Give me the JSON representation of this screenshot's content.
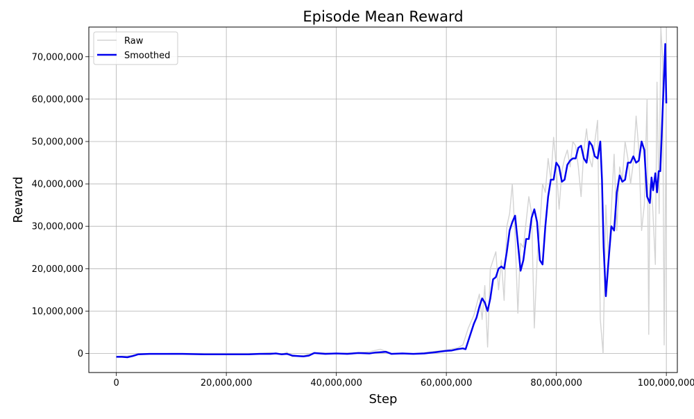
{
  "chart_data": {
    "type": "line",
    "title": "Episode Mean Reward",
    "xlabel": "Step",
    "ylabel": "Reward",
    "xlim": [
      -5000000,
      102000000
    ],
    "ylim": [
      -4500000,
      77000000
    ],
    "grid": true,
    "legend_position": "top-left",
    "x_ticks": [
      0,
      20000000,
      40000000,
      60000000,
      80000000,
      100000000
    ],
    "x_tick_labels": [
      "0",
      "20,000,000",
      "40,000,000",
      "60,000,000",
      "80,000,000",
      "100,000,000"
    ],
    "y_ticks": [
      0,
      10000000,
      20000000,
      30000000,
      40000000,
      50000000,
      60000000,
      70000000
    ],
    "y_tick_labels": [
      "0",
      "10,000,000",
      "20,000,000",
      "30,000,000",
      "40,000,000",
      "50,000,000",
      "60,000,000",
      "70,000,000"
    ],
    "series": [
      {
        "name": "Raw",
        "color": "#d3d3d3",
        "x": [
          0,
          2000000,
          4000000,
          6000000,
          8000000,
          10000000,
          14000000,
          18000000,
          22000000,
          26000000,
          28000000,
          30000000,
          31000000,
          32000000,
          34000000,
          36000000,
          40000000,
          44000000,
          46000000,
          48000000,
          50000000,
          54000000,
          58000000,
          60000000,
          62000000,
          63000000,
          64000000,
          65000000,
          66000000,
          66500000,
          67000000,
          67500000,
          68000000,
          69000000,
          69500000,
          70000000,
          70500000,
          71000000,
          71500000,
          72000000,
          72500000,
          73000000,
          73500000,
          74000000,
          75000000,
          75500000,
          76000000,
          76500000,
          77000000,
          77500000,
          78000000,
          78500000,
          79000000,
          79500000,
          80000000,
          80500000,
          81000000,
          81500000,
          82000000,
          82500000,
          83000000,
          83500000,
          84000000,
          84500000,
          85000000,
          85500000,
          86000000,
          86500000,
          87000000,
          87500000,
          88000000,
          88500000,
          89000000,
          89500000,
          90000000,
          90500000,
          91000000,
          91500000,
          92000000,
          92500000,
          93000000,
          93500000,
          94000000,
          94500000,
          95000000,
          95500000,
          96000000,
          96500000,
          96800000,
          97000000,
          97500000,
          98000000,
          98300000,
          98700000,
          99000000,
          99300000,
          99600000,
          100000000
        ],
        "y": [
          -700000,
          -600000,
          -200000,
          -100000,
          -100000,
          0,
          0,
          0,
          0,
          0,
          200000,
          -300000,
          300000,
          -800000,
          -500000,
          200000,
          0,
          200000,
          400000,
          1000000,
          0,
          -100000,
          500000,
          800000,
          1300000,
          2000000,
          6000000,
          9000000,
          14000000,
          8000000,
          16000000,
          1500000,
          20000000,
          24000000,
          15000000,
          22000000,
          12500000,
          30000000,
          33000000,
          40000000,
          28000000,
          9500000,
          26000000,
          25000000,
          37000000,
          33000000,
          6000000,
          22000000,
          30000000,
          40000000,
          38000000,
          46000000,
          41000000,
          51000000,
          44000000,
          34000000,
          43000000,
          46000000,
          48000000,
          44000000,
          50000000,
          49000000,
          44000000,
          37000000,
          48000000,
          53000000,
          46000000,
          44000000,
          50000000,
          55000000,
          8000000,
          0,
          35000000,
          22000000,
          34000000,
          47000000,
          29000000,
          44000000,
          41000000,
          50000000,
          46000000,
          40000000,
          45000000,
          56000000,
          48000000,
          29000000,
          35000000,
          60000000,
          4500000,
          40000000,
          35000000,
          21000000,
          64000000,
          33000000,
          77000000,
          70000000,
          2000000,
          62000000
        ]
      },
      {
        "name": "Smoothed",
        "color": "#0000ee",
        "x": [
          0,
          1000000,
          2000000,
          3000000,
          4000000,
          6000000,
          8000000,
          9000000,
          12000000,
          16000000,
          20000000,
          24000000,
          26000000,
          28000000,
          29000000,
          30000000,
          31000000,
          32000000,
          33000000,
          34000000,
          35000000,
          36000000,
          37000000,
          38000000,
          40000000,
          42000000,
          44000000,
          46000000,
          47000000,
          48000000,
          49000000,
          50000000,
          52000000,
          54000000,
          56000000,
          58000000,
          60000000,
          61000000,
          62000000,
          63000000,
          63500000,
          64000000,
          65000000,
          65500000,
          66000000,
          66500000,
          67000000,
          67500000,
          68000000,
          68500000,
          69000000,
          69500000,
          70000000,
          70500000,
          71000000,
          71500000,
          72000000,
          72500000,
          73000000,
          73500000,
          74000000,
          74500000,
          75000000,
          75500000,
          76000000,
          76500000,
          77000000,
          77500000,
          78000000,
          78500000,
          79000000,
          79500000,
          80000000,
          80500000,
          81000000,
          81500000,
          82000000,
          82500000,
          83000000,
          83500000,
          84000000,
          84500000,
          85000000,
          85500000,
          86000000,
          86500000,
          87000000,
          87500000,
          88000000,
          88300000,
          88600000,
          89000000,
          89500000,
          90000000,
          90500000,
          91000000,
          91500000,
          92000000,
          92500000,
          93000000,
          93500000,
          94000000,
          94500000,
          95000000,
          95500000,
          96000000,
          96500000,
          97000000,
          97300000,
          97600000,
          98000000,
          98300000,
          98600000,
          98900000,
          99200000,
          99500000,
          99800000,
          100000000
        ],
        "y": [
          -800000,
          -800000,
          -900000,
          -600000,
          -200000,
          -100000,
          -100000,
          -100000,
          -100000,
          -200000,
          -200000,
          -200000,
          -100000,
          -100000,
          0,
          -200000,
          -100000,
          -500000,
          -600000,
          -700000,
          -500000,
          100000,
          0,
          -100000,
          0,
          -100000,
          100000,
          0,
          200000,
          300000,
          400000,
          -100000,
          0,
          -100000,
          0,
          300000,
          600000,
          700000,
          1000000,
          1200000,
          1000000,
          3000000,
          7000000,
          8500000,
          11000000,
          13000000,
          12000000,
          10000000,
          13000000,
          17500000,
          18000000,
          20000000,
          20500000,
          20000000,
          24000000,
          29000000,
          31000000,
          32500000,
          26000000,
          19500000,
          22000000,
          27000000,
          27000000,
          32000000,
          34000000,
          31000000,
          22000000,
          21000000,
          30000000,
          37000000,
          41000000,
          41000000,
          45000000,
          44000000,
          40500000,
          41000000,
          44500000,
          45500000,
          46000000,
          46000000,
          48500000,
          49000000,
          46000000,
          45000000,
          50000000,
          49000000,
          46500000,
          46000000,
          50000000,
          41000000,
          25000000,
          13500000,
          22000000,
          30000000,
          29000000,
          38000000,
          42000000,
          40500000,
          41000000,
          45000000,
          45000000,
          46500000,
          45000000,
          45500000,
          50000000,
          48000000,
          37000000,
          35500000,
          41500000,
          38500000,
          42500000,
          38000000,
          43000000,
          43000000,
          53000000,
          63000000,
          73000000,
          59000000
        ]
      }
    ]
  }
}
